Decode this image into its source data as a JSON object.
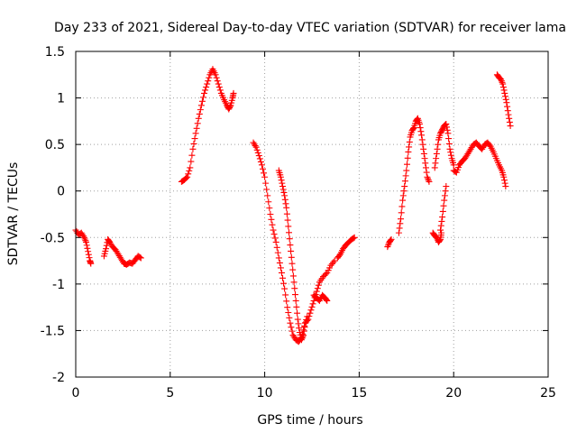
{
  "chart_data": {
    "type": "scatter",
    "title": "Day 233 of 2021, Sidereal Day-to-day VTEC variation (SDTVAR) for receiver lama",
    "xlabel": "GPS time / hours",
    "ylabel": "SDTVAR / TECUs",
    "xlim": [
      0,
      25
    ],
    "ylim": [
      -2,
      1.5
    ],
    "xticks": [
      0,
      5,
      10,
      15,
      20,
      25
    ],
    "yticks": [
      -2,
      -1.5,
      -1,
      -0.5,
      0,
      0.5,
      1,
      1.5
    ],
    "xtick_labels": [
      "0",
      "5",
      "10",
      "15",
      "20",
      "25"
    ],
    "ytick_labels": [
      "-2",
      "-1.5",
      "-1",
      "-0.5",
      "0",
      "0.5",
      "1",
      "1.5"
    ],
    "grid": true,
    "marker": "+",
    "color": "#ff0000",
    "series": [
      {
        "name": "s1",
        "points": [
          [
            0.0,
            -0.42
          ],
          [
            0.15,
            -0.47
          ],
          [
            0.3,
            -0.45
          ],
          [
            0.45,
            -0.5
          ],
          [
            0.55,
            -0.55
          ],
          [
            0.65,
            -0.65
          ],
          [
            0.75,
            -0.75
          ],
          [
            0.8,
            -0.78
          ]
        ]
      },
      {
        "name": "s2",
        "points": [
          [
            1.5,
            -0.7
          ],
          [
            1.6,
            -0.62
          ],
          [
            1.7,
            -0.52
          ],
          [
            1.8,
            -0.55
          ],
          [
            1.95,
            -0.6
          ],
          [
            2.1,
            -0.63
          ],
          [
            2.25,
            -0.68
          ],
          [
            2.4,
            -0.73
          ],
          [
            2.55,
            -0.78
          ],
          [
            2.7,
            -0.79
          ],
          [
            2.85,
            -0.77
          ],
          [
            3.0,
            -0.78
          ],
          [
            3.15,
            -0.74
          ],
          [
            3.3,
            -0.7
          ],
          [
            3.45,
            -0.72
          ]
        ]
      },
      {
        "name": "s3",
        "points": [
          [
            5.6,
            0.1
          ],
          [
            5.75,
            0.12
          ],
          [
            5.9,
            0.15
          ],
          [
            6.05,
            0.25
          ],
          [
            6.2,
            0.45
          ],
          [
            6.35,
            0.62
          ],
          [
            6.5,
            0.78
          ],
          [
            6.65,
            0.92
          ],
          [
            6.8,
            1.05
          ],
          [
            6.95,
            1.15
          ],
          [
            7.1,
            1.25
          ],
          [
            7.25,
            1.31
          ],
          [
            7.4,
            1.25
          ],
          [
            7.55,
            1.15
          ],
          [
            7.7,
            1.05
          ],
          [
            7.85,
            0.98
          ],
          [
            8.0,
            0.92
          ],
          [
            8.1,
            0.88
          ],
          [
            8.2,
            0.92
          ],
          [
            8.3,
            1.0
          ],
          [
            8.35,
            1.05
          ]
        ]
      },
      {
        "name": "s4",
        "points": [
          [
            9.4,
            0.52
          ],
          [
            9.55,
            0.47
          ],
          [
            9.7,
            0.38
          ],
          [
            9.85,
            0.28
          ],
          [
            10.0,
            0.15
          ],
          [
            10.15,
            -0.05
          ],
          [
            10.3,
            -0.25
          ],
          [
            10.45,
            -0.42
          ],
          [
            10.6,
            -0.55
          ],
          [
            10.75,
            -0.72
          ],
          [
            10.9,
            -0.88
          ],
          [
            11.05,
            -1.05
          ],
          [
            11.2,
            -1.25
          ],
          [
            11.35,
            -1.42
          ],
          [
            11.5,
            -1.55
          ],
          [
            11.65,
            -1.6
          ],
          [
            11.8,
            -1.62
          ],
          [
            11.95,
            -1.58
          ],
          [
            12.1,
            -1.45
          ],
          [
            12.25,
            -1.35
          ]
        ]
      },
      {
        "name": "s5",
        "points": [
          [
            10.75,
            0.22
          ],
          [
            10.85,
            0.15
          ],
          [
            10.95,
            0.05
          ],
          [
            11.05,
            -0.05
          ],
          [
            11.15,
            -0.18
          ],
          [
            11.25,
            -0.38
          ],
          [
            11.35,
            -0.58
          ],
          [
            11.45,
            -0.78
          ],
          [
            11.55,
            -0.98
          ],
          [
            11.65,
            -1.18
          ],
          [
            11.75,
            -1.38
          ],
          [
            11.85,
            -1.52
          ],
          [
            11.95,
            -1.6
          ],
          [
            12.05,
            -1.55
          ],
          [
            12.15,
            -1.42
          ],
          [
            12.3,
            -1.38
          ],
          [
            12.45,
            -1.28
          ],
          [
            12.6,
            -1.18
          ],
          [
            12.75,
            -1.08
          ],
          [
            12.9,
            -0.98
          ],
          [
            13.1,
            -0.92
          ],
          [
            13.3,
            -0.88
          ],
          [
            13.5,
            -0.8
          ],
          [
            13.7,
            -0.75
          ]
        ]
      },
      {
        "name": "s6",
        "points": [
          [
            12.6,
            -1.12
          ],
          [
            12.75,
            -1.15
          ],
          [
            12.9,
            -1.18
          ],
          [
            13.05,
            -1.12
          ],
          [
            13.2,
            -1.15
          ],
          [
            13.3,
            -1.18
          ]
        ]
      },
      {
        "name": "s7",
        "points": [
          [
            13.85,
            -0.72
          ],
          [
            14.0,
            -0.68
          ],
          [
            14.15,
            -0.62
          ],
          [
            14.3,
            -0.58
          ],
          [
            14.45,
            -0.55
          ],
          [
            14.6,
            -0.52
          ],
          [
            14.75,
            -0.5
          ]
        ]
      },
      {
        "name": "s8",
        "points": [
          [
            16.5,
            -0.6
          ],
          [
            16.6,
            -0.55
          ],
          [
            16.7,
            -0.52
          ]
        ]
      },
      {
        "name": "s9",
        "points": [
          [
            17.1,
            -0.45
          ],
          [
            17.2,
            -0.3
          ],
          [
            17.3,
            -0.1
          ],
          [
            17.4,
            0.05
          ],
          [
            17.5,
            0.22
          ],
          [
            17.6,
            0.42
          ],
          [
            17.7,
            0.58
          ],
          [
            17.8,
            0.65
          ],
          [
            17.9,
            0.68
          ],
          [
            18.0,
            0.75
          ],
          [
            18.1,
            0.78
          ],
          [
            18.2,
            0.72
          ],
          [
            18.3,
            0.6
          ],
          [
            18.4,
            0.45
          ],
          [
            18.5,
            0.3
          ],
          [
            18.6,
            0.15
          ],
          [
            18.7,
            0.1
          ]
        ]
      },
      {
        "name": "s10",
        "points": [
          [
            18.9,
            -0.45
          ],
          [
            19.0,
            -0.48
          ],
          [
            19.1,
            -0.5
          ],
          [
            19.2,
            -0.55
          ],
          [
            19.3,
            -0.52
          ],
          [
            19.35,
            -0.45
          ]
        ]
      },
      {
        "name": "s11",
        "points": [
          [
            19.0,
            0.25
          ],
          [
            19.1,
            0.4
          ],
          [
            19.2,
            0.55
          ],
          [
            19.3,
            0.62
          ],
          [
            19.4,
            0.66
          ],
          [
            19.5,
            0.7
          ],
          [
            19.6,
            0.72
          ],
          [
            19.7,
            0.62
          ],
          [
            19.8,
            0.45
          ],
          [
            19.9,
            0.35
          ],
          [
            20.0,
            0.28
          ]
        ]
      },
      {
        "name": "s12",
        "points": [
          [
            19.3,
            -0.42
          ],
          [
            19.4,
            -0.28
          ],
          [
            19.5,
            -0.1
          ],
          [
            19.6,
            0.05
          ]
        ]
      },
      {
        "name": "s13",
        "points": [
          [
            20.0,
            0.22
          ],
          [
            20.15,
            0.2
          ],
          [
            20.3,
            0.28
          ],
          [
            20.45,
            0.32
          ],
          [
            20.6,
            0.35
          ],
          [
            20.75,
            0.4
          ],
          [
            20.9,
            0.45
          ],
          [
            21.05,
            0.5
          ],
          [
            21.2,
            0.52
          ],
          [
            21.35,
            0.48
          ],
          [
            21.5,
            0.45
          ],
          [
            21.65,
            0.5
          ],
          [
            21.8,
            0.52
          ],
          [
            21.95,
            0.48
          ],
          [
            22.1,
            0.42
          ],
          [
            22.25,
            0.35
          ],
          [
            22.4,
            0.28
          ],
          [
            22.55,
            0.22
          ],
          [
            22.65,
            0.15
          ],
          [
            22.75,
            0.05
          ]
        ]
      },
      {
        "name": "s14",
        "points": [
          [
            22.3,
            1.25
          ],
          [
            22.4,
            1.22
          ],
          [
            22.5,
            1.2
          ],
          [
            22.6,
            1.15
          ],
          [
            22.7,
            1.05
          ],
          [
            22.8,
            0.95
          ],
          [
            22.9,
            0.82
          ],
          [
            23.0,
            0.7
          ]
        ]
      }
    ]
  }
}
